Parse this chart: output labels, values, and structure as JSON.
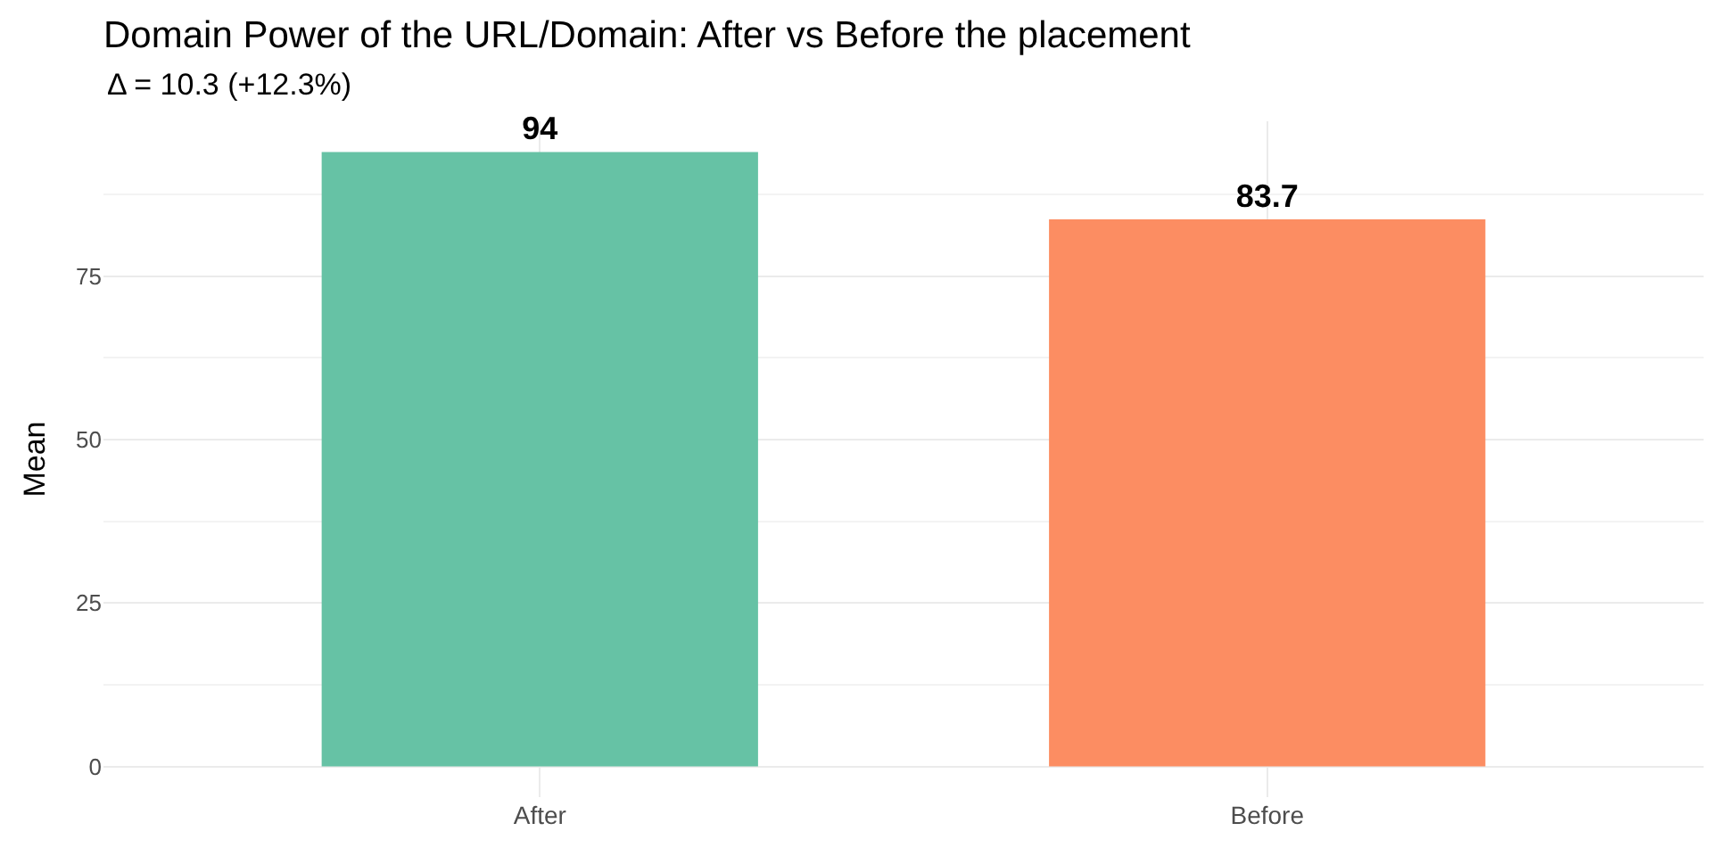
{
  "chart_data": {
    "type": "bar",
    "title": "Domain Power of the URL/Domain: After vs Before the placement",
    "subtitle": "Δ = 10.3 (+12.3%)",
    "ylabel": "Mean",
    "categories": [
      "After",
      "Before"
    ],
    "values": [
      94,
      83.7
    ],
    "colors": [
      "#66c2a5",
      "#fc8d62"
    ],
    "ylim": [
      -4.7,
      98.7
    ],
    "yticks": [
      0,
      25,
      50,
      75
    ],
    "grid": true,
    "data_labels": true,
    "legend": false
  }
}
